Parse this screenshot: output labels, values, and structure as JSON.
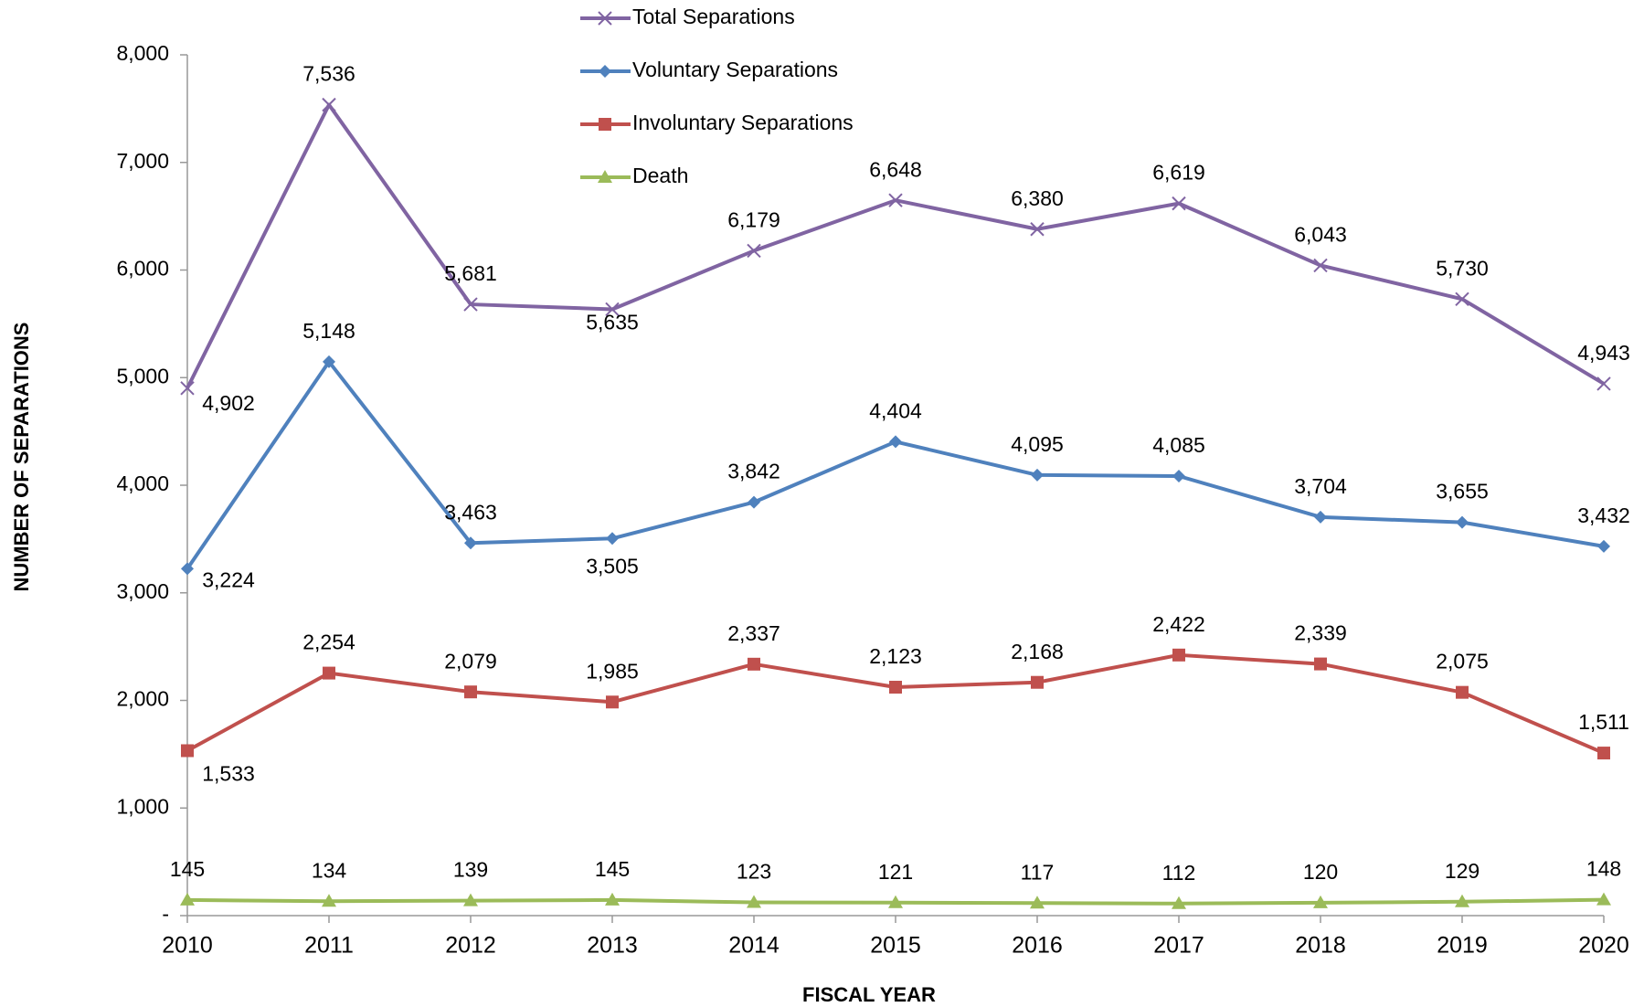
{
  "chart_data": {
    "type": "line",
    "x_label": "FISCAL YEAR",
    "y_label": "NUMBER OF SEPARATIONS",
    "categories": [
      "2010",
      "2011",
      "2012",
      "2013",
      "2014",
      "2015",
      "2016",
      "2017",
      "2018",
      "2019",
      "2020"
    ],
    "ylim": [
      0,
      8000
    ],
    "yticks": [
      {
        "value": 0,
        "label": "-"
      },
      {
        "value": 1000,
        "label": "1,000"
      },
      {
        "value": 2000,
        "label": "2,000"
      },
      {
        "value": 3000,
        "label": "3,000"
      },
      {
        "value": 4000,
        "label": "4,000"
      },
      {
        "value": 5000,
        "label": "5,000"
      },
      {
        "value": 6000,
        "label": "6,000"
      },
      {
        "value": 7000,
        "label": "7,000"
      },
      {
        "value": 8000,
        "label": "8,000"
      }
    ],
    "grid": false,
    "legend": "top",
    "series": [
      {
        "name": "Total Separations",
        "color": "#8064a2",
        "marker": "x",
        "values": [
          4902,
          7536,
          5681,
          5635,
          6179,
          6648,
          6380,
          6619,
          6043,
          5730,
          4943
        ],
        "value_labels": [
          "4,902",
          "7,536",
          "5,681",
          "5,635",
          "6,179",
          "6,648",
          "6,380",
          "6,619",
          "6,043",
          "5,730",
          "4,943"
        ]
      },
      {
        "name": "Voluntary Separations",
        "color": "#4f81bd",
        "marker": "diamond",
        "values": [
          3224,
          5148,
          3463,
          3505,
          3842,
          4404,
          4095,
          4085,
          3704,
          3655,
          3432
        ],
        "value_labels": [
          "3,224",
          "5,148",
          "3,463",
          "3,505",
          "3,842",
          "4,404",
          "4,095",
          "4,085",
          "3,704",
          "3,655",
          "3,432"
        ]
      },
      {
        "name": "Involuntary Separations",
        "color": "#c0504d",
        "marker": "square",
        "values": [
          1533,
          2254,
          2079,
          1985,
          2337,
          2123,
          2168,
          2422,
          2339,
          2075,
          1511
        ],
        "value_labels": [
          "1,533",
          "2,254",
          "2,079",
          "1,985",
          "2,337",
          "2,123",
          "2,168",
          "2,422",
          "2,339",
          "2,075",
          "1,511"
        ]
      },
      {
        "name": "Death",
        "color": "#9bbb59",
        "marker": "triangle",
        "values": [
          145,
          134,
          139,
          145,
          123,
          121,
          117,
          112,
          120,
          129,
          148
        ]
      }
    ]
  }
}
